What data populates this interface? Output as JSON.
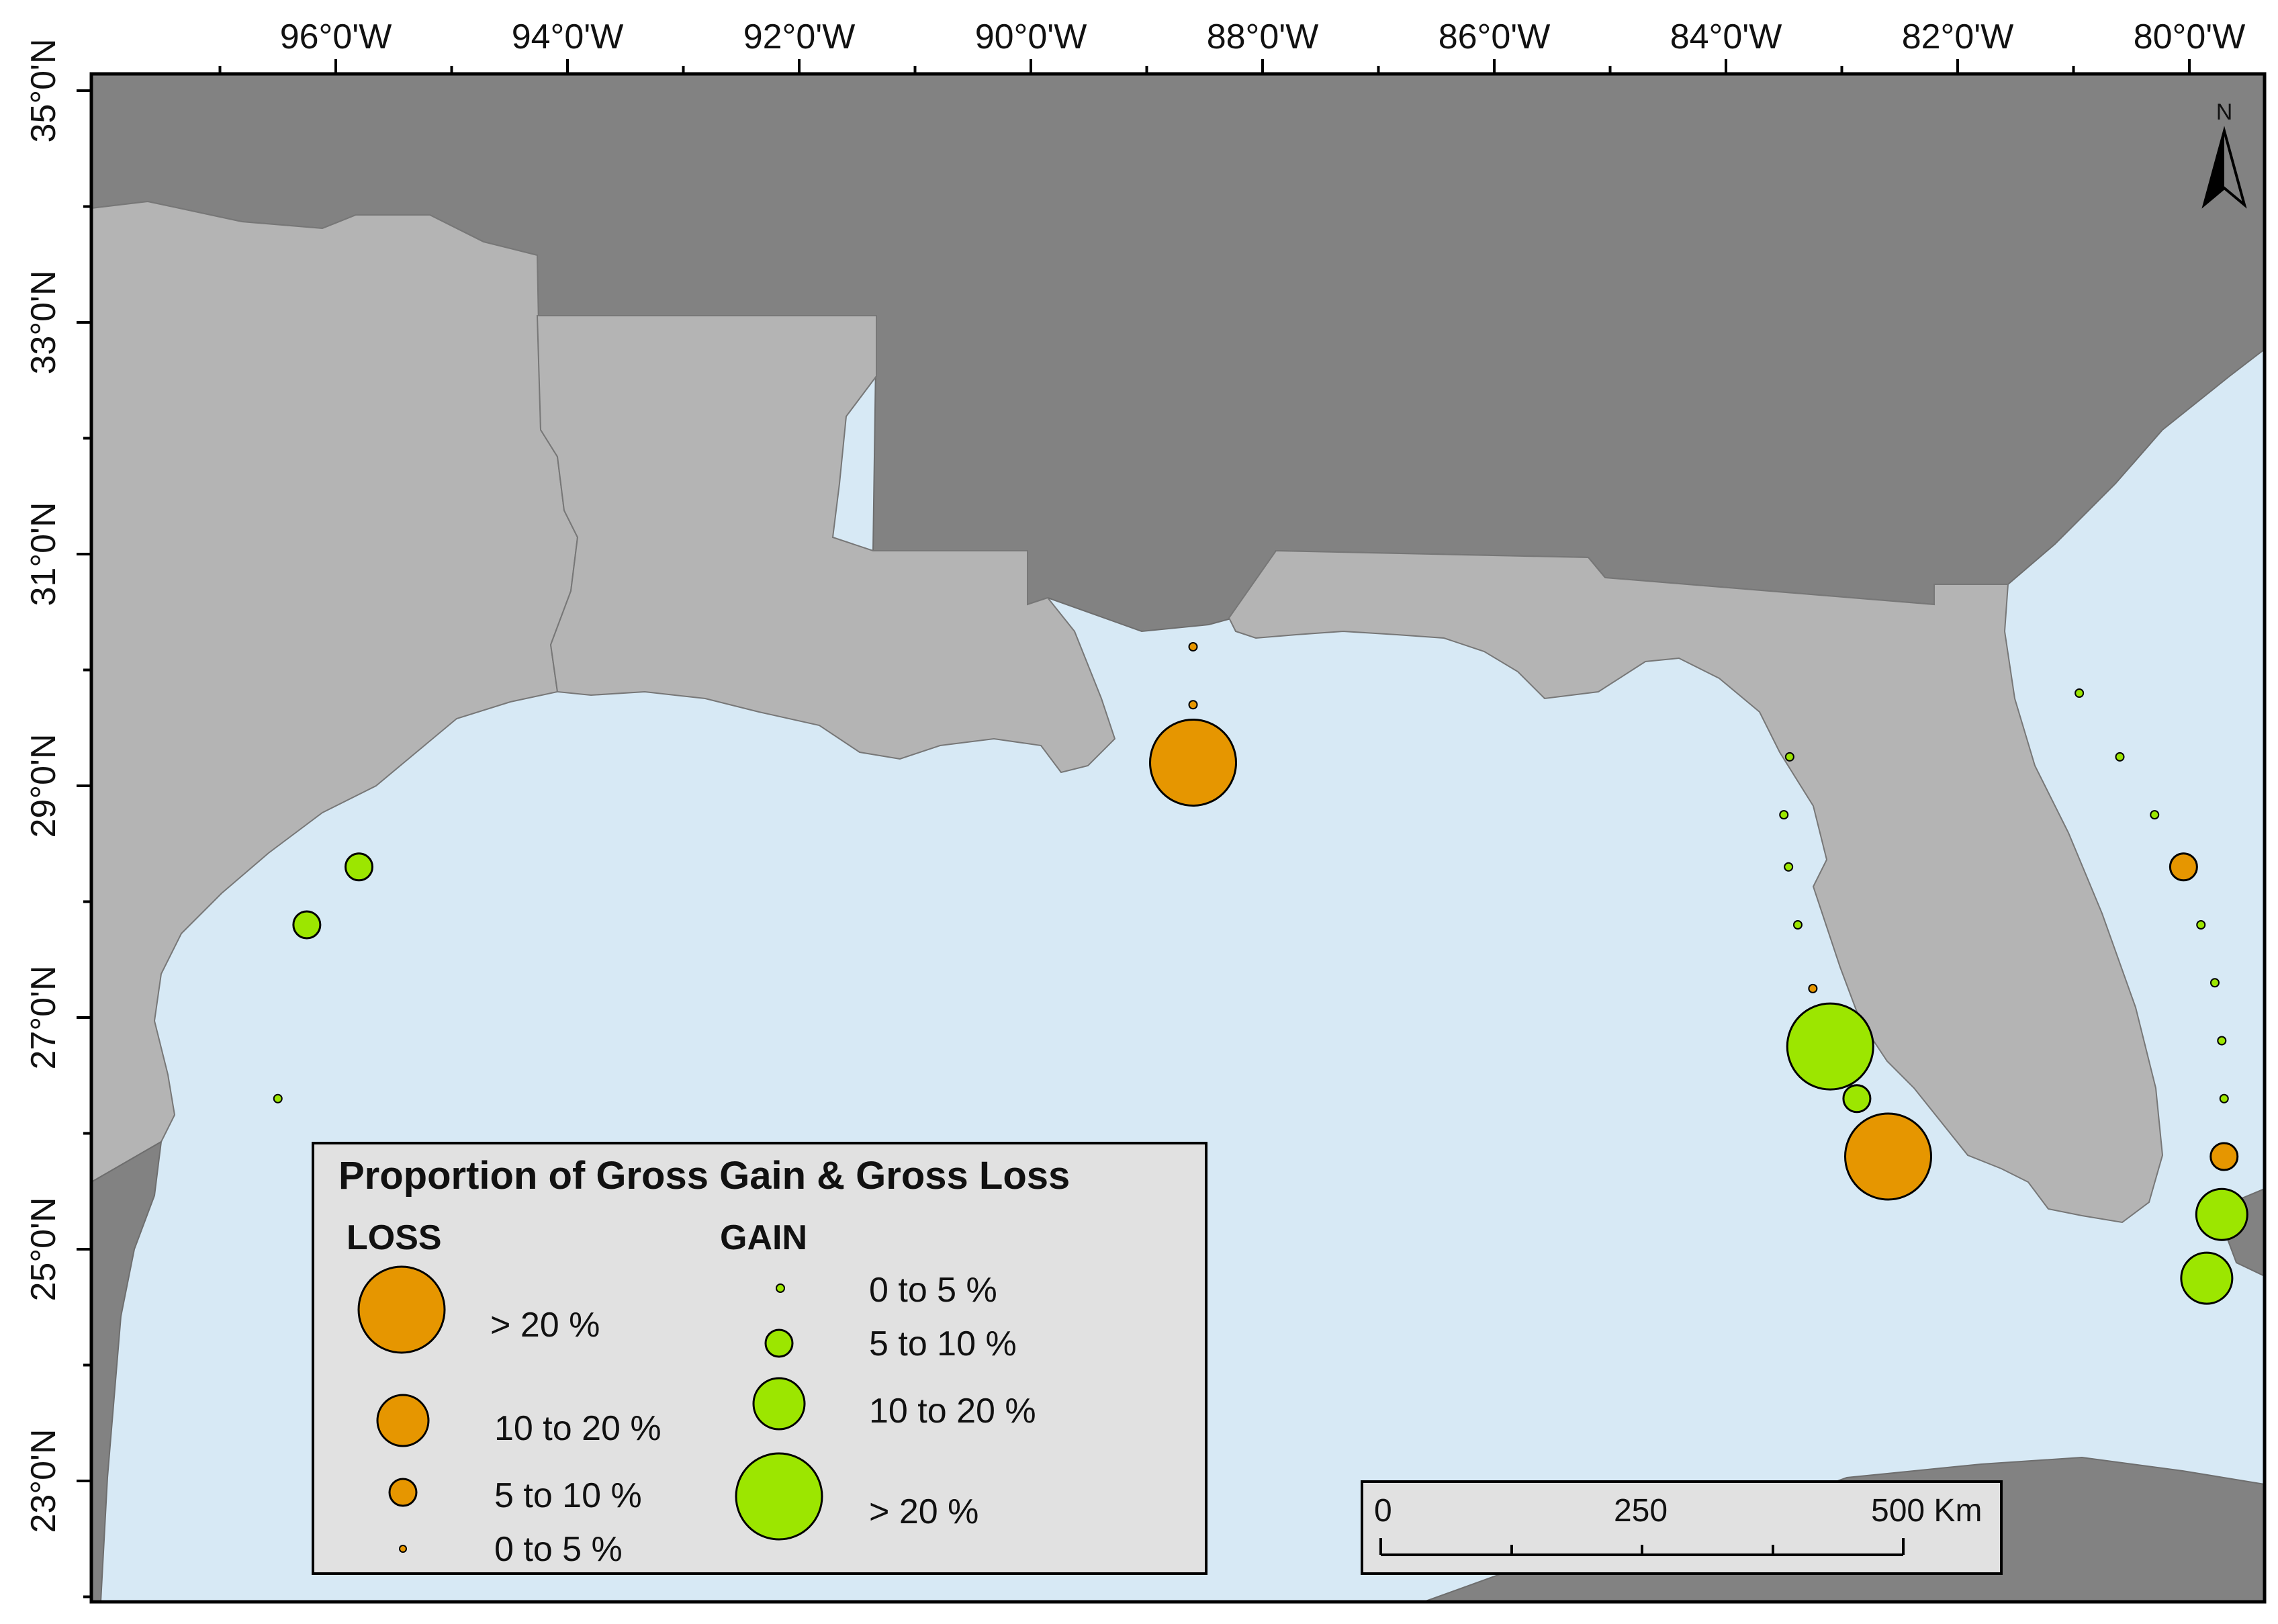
{
  "map": {
    "longitude_labels": [
      "96°0'W",
      "94°0'W",
      "92°0'W",
      "90°0'W",
      "88°0'W",
      "86°0'W",
      "84°0'W",
      "82°0'W",
      "80°0'W"
    ],
    "latitude_labels": [
      "35°0'N",
      "33°0'N",
      "31°0'N",
      "29°0'N",
      "27°0'N",
      "25°0'N",
      "23°0'N"
    ],
    "north_arrow_label": "N",
    "colors": {
      "water": "#d7e9f5",
      "state_light": "#b4b4b4",
      "state_dark": "#828282",
      "loss": "#e69600",
      "gain": "#9ce600",
      "legend_bg": "#e1e1e1"
    }
  },
  "legend": {
    "title": "Proportion of Gross Gain & Gross Loss",
    "loss_header": "LOSS",
    "gain_header": "GAIN",
    "loss_classes": [
      {
        "label": "> 20 %"
      },
      {
        "label": "10 to 20 %"
      },
      {
        "label": "5 to 10 %"
      },
      {
        "label": "0 to 5 %"
      }
    ],
    "gain_classes": [
      {
        "label": "0 to 5 %"
      },
      {
        "label": "5 to 10 %"
      },
      {
        "label": "10 to 20 %"
      },
      {
        "label": "> 20 %"
      }
    ]
  },
  "scale_bar": {
    "labels": [
      "0",
      "250",
      "500 Km"
    ]
  },
  "sites": [
    {
      "type": "loss",
      "class": "0 to 5 %",
      "lon": -88.6,
      "lat": 30.2
    },
    {
      "type": "loss",
      "class": "0 to 5 %",
      "lon": -88.6,
      "lat": 29.7
    },
    {
      "type": "loss",
      "class": "> 20 %",
      "lon": -88.6,
      "lat": 29.2
    },
    {
      "type": "gain",
      "class": "5 to 10 %",
      "lon": -95.8,
      "lat": 28.3
    },
    {
      "type": "gain",
      "class": "5 to 10 %",
      "lon": -96.25,
      "lat": 27.8
    },
    {
      "type": "gain",
      "class": "0 to 5 %",
      "lon": -96.5,
      "lat": 26.3
    },
    {
      "type": "gain",
      "class": "0 to 5 %",
      "lon": -83.45,
      "lat": 29.25
    },
    {
      "type": "gain",
      "class": "0 to 5 %",
      "lon": -83.5,
      "lat": 28.75
    },
    {
      "type": "gain",
      "class": "0 to 5 %",
      "lon": -83.46,
      "lat": 28.3
    },
    {
      "type": "gain",
      "class": "0 to 5 %",
      "lon": -83.38,
      "lat": 27.8
    },
    {
      "type": "loss",
      "class": "0 to 5 %",
      "lon": -83.25,
      "lat": 27.25
    },
    {
      "type": "gain",
      "class": "> 20 %",
      "lon": -83.1,
      "lat": 26.75
    },
    {
      "type": "gain",
      "class": "5 to 10 %",
      "lon": -82.87,
      "lat": 26.3
    },
    {
      "type": "loss",
      "class": "> 20 %",
      "lon": -82.6,
      "lat": 25.8
    },
    {
      "type": "gain",
      "class": "0 to 5 %",
      "lon": -80.95,
      "lat": 29.8
    },
    {
      "type": "gain",
      "class": "0 to 5 %",
      "lon": -80.6,
      "lat": 29.25
    },
    {
      "type": "gain",
      "class": "0 to 5 %",
      "lon": -80.3,
      "lat": 28.75
    },
    {
      "type": "loss",
      "class": "5 to 10 %",
      "lon": -80.05,
      "lat": 28.3
    },
    {
      "type": "gain",
      "class": "0 to 5 %",
      "lon": -79.9,
      "lat": 27.8
    },
    {
      "type": "gain",
      "class": "0 to 5 %",
      "lon": -79.78,
      "lat": 27.3
    },
    {
      "type": "gain",
      "class": "0 to 5 %",
      "lon": -79.72,
      "lat": 26.8
    },
    {
      "type": "gain",
      "class": "0 to 5 %",
      "lon": -79.7,
      "lat": 26.3
    },
    {
      "type": "loss",
      "class": "5 to 10 %",
      "lon": -79.7,
      "lat": 25.8
    },
    {
      "type": "gain",
      "class": "10 to 20 %",
      "lon": -79.72,
      "lat": 25.3
    },
    {
      "type": "gain",
      "class": "10 to 20 %",
      "lon": -79.85,
      "lat": 24.75
    }
  ]
}
